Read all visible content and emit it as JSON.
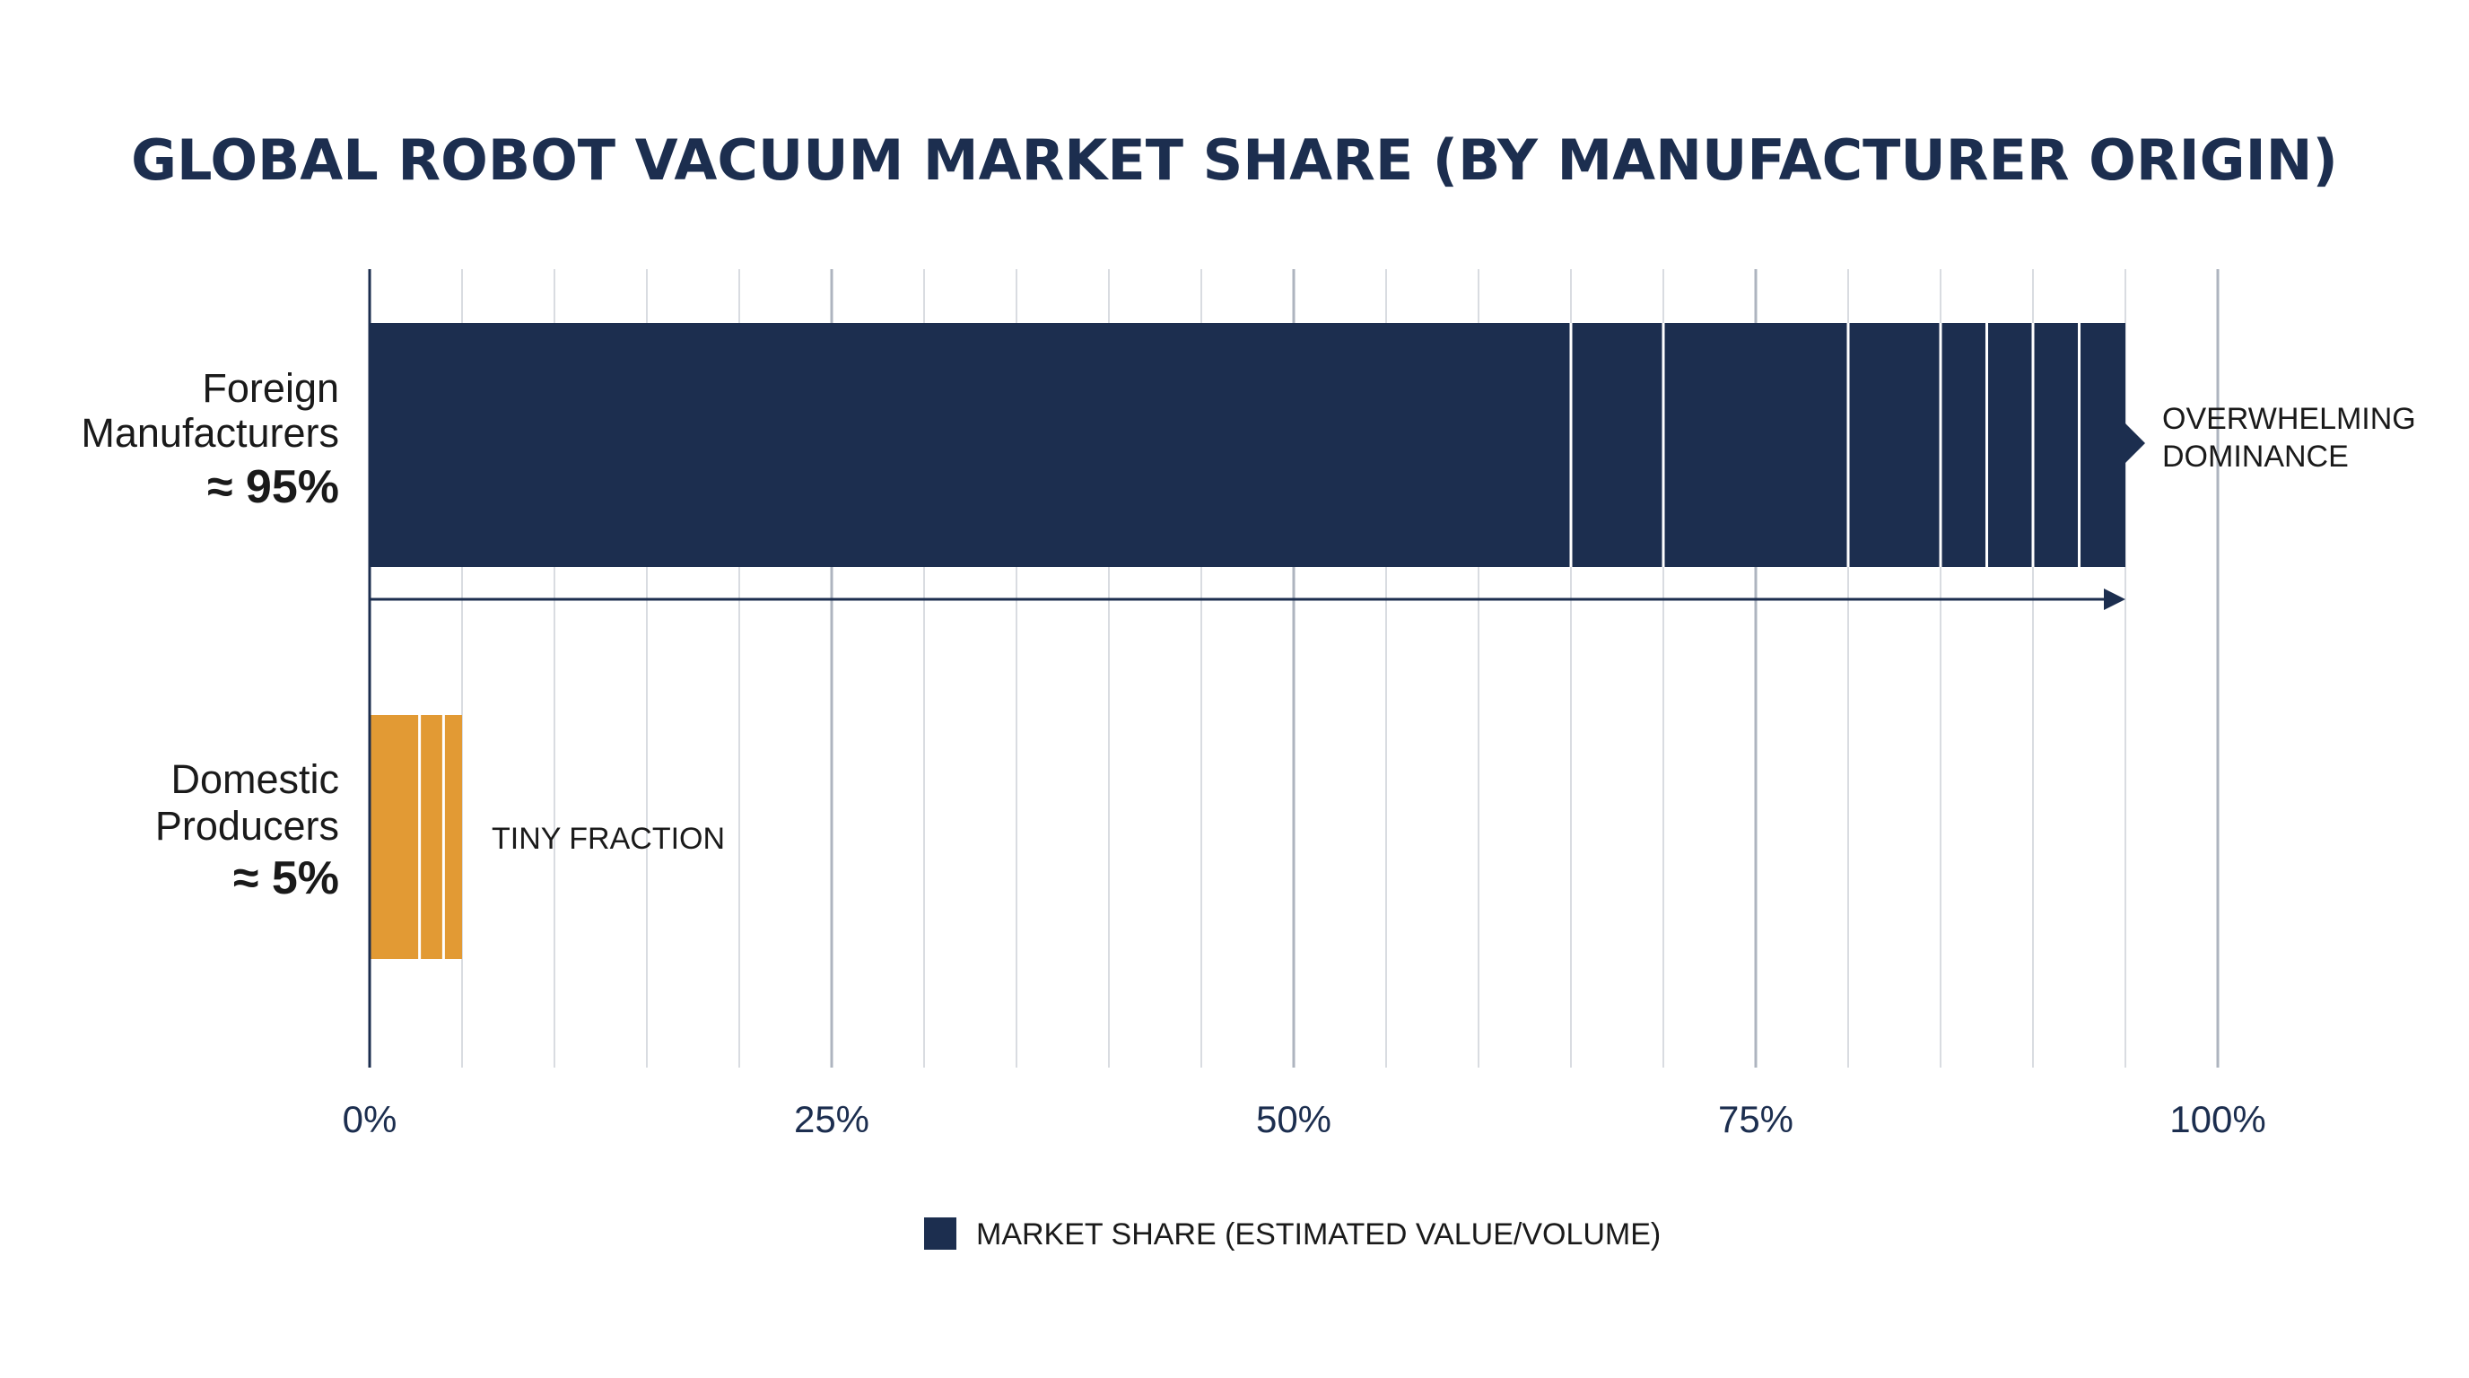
{
  "chart_data": {
    "type": "bar",
    "orientation": "horizontal",
    "title": "GLOBAL ROBOT VACUUM MARKET SHARE (BY MANUFACTURER ORIGIN)",
    "categories": [
      {
        "name_lines": [
          "Foreign",
          "Manufacturers"
        ],
        "value_label": "≈ 95%",
        "value": 95,
        "color": "#1c2e4f",
        "segment_dividers": [
          65,
          70,
          80,
          85,
          87.5,
          90,
          92.5
        ]
      },
      {
        "name_lines": [
          "Domestic",
          "Producers"
        ],
        "value_label": "≈ 5%",
        "value": 5,
        "color": "#e29a34",
        "segment_dividers": [
          2.7,
          4
        ]
      }
    ],
    "annotations": [
      {
        "lines": [
          "OVERWHELMING",
          "DOMINANCE"
        ]
      },
      {
        "lines": [
          "TINY FRACTION"
        ]
      }
    ],
    "xlim": [
      0,
      100
    ],
    "x_ticks": [
      0,
      25,
      50,
      75,
      100
    ],
    "x_tick_labels": [
      "0%",
      "25%",
      "50%",
      "75%",
      "100%"
    ],
    "minor_grid_step": 5,
    "grid": true,
    "legend": {
      "label": "MARKET SHARE (ESTIMATED VALUE/VOLUME)",
      "color": "#1c2e4f",
      "placement": "bottom-center"
    },
    "colors": {
      "title": "#1c2e4f",
      "axis": "#1c2e4f",
      "grid_major": "#aeb4bf",
      "grid_minor": "#d9dce1",
      "arrow": "#1c2e4f"
    }
  }
}
